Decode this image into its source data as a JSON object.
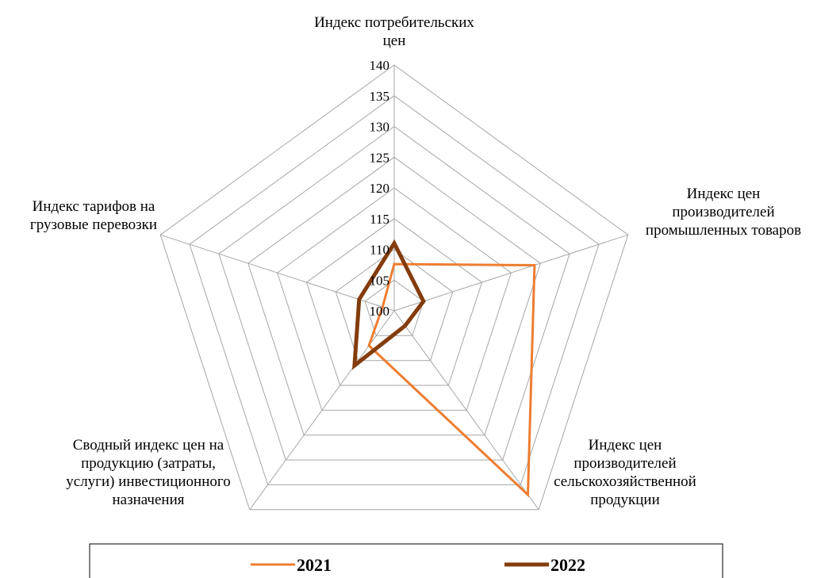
{
  "chart_data": {
    "type": "radar",
    "title": "",
    "axes": [
      {
        "key": "cpi",
        "label_lines": [
          "Индекс потребительских",
          "цен"
        ]
      },
      {
        "key": "ppi_industrial",
        "label_lines": [
          "Индекс цен",
          "производителей",
          "промышленных товаров"
        ]
      },
      {
        "key": "ppi_agri",
        "label_lines": [
          "Индекс цен",
          "производителей",
          "сельскохозяйственной",
          "продукции"
        ]
      },
      {
        "key": "invest",
        "label_lines": [
          "Сводный индекс цен на",
          "продукцию (затраты,",
          "услуги) инвестиционного",
          "назначения"
        ]
      },
      {
        "key": "freight",
        "label_lines": [
          "Индекс тарифов на",
          "грузовые перевозки"
        ]
      }
    ],
    "scale": {
      "min": 100,
      "max": 140,
      "step": 5
    },
    "ticks": [
      "100",
      "105",
      "110",
      "115",
      "120",
      "125",
      "130",
      "135",
      "140"
    ],
    "grid": true,
    "legend_position": "bottom",
    "series": [
      {
        "name": "2021",
        "color": "#ED7D31",
        "values": [
          107.6,
          124.0,
          137.0,
          107.0,
          102.0
        ]
      },
      {
        "name": "2022",
        "color": "#843C0C",
        "values": [
          111.0,
          105.0,
          103.0,
          111.0,
          106.0
        ]
      }
    ]
  }
}
